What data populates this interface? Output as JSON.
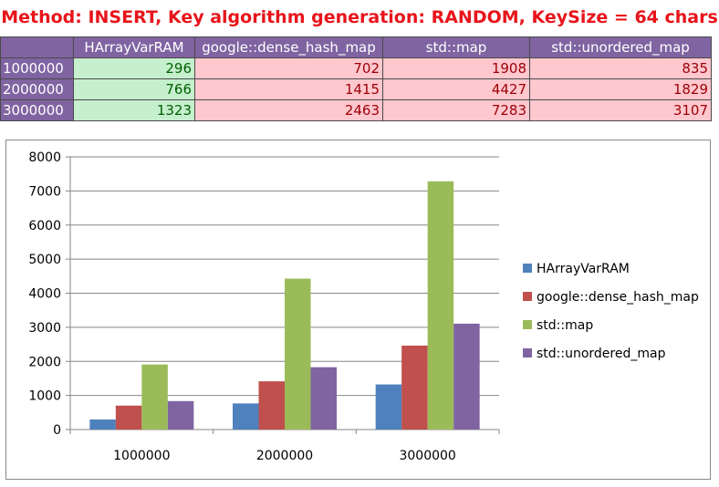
{
  "title": "Method: INSERT, Key algorithm generation: RANDOM, KeySize = 64 chars",
  "table": {
    "columns": [
      "HArrayVarRAM",
      "google::dense_hash_map",
      "std::map",
      "std::unordered_map"
    ],
    "rows": [
      {
        "label": "1000000",
        "values": [
          "296",
          "702",
          "1908",
          "835"
        ]
      },
      {
        "label": "2000000",
        "values": [
          "766",
          "1415",
          "4427",
          "1829"
        ]
      },
      {
        "label": "3000000",
        "values": [
          "1323",
          "2463",
          "7283",
          "3107"
        ]
      }
    ]
  },
  "chart_data": {
    "type": "bar",
    "categories": [
      "1000000",
      "2000000",
      "3000000"
    ],
    "series": [
      {
        "name": "HArrayVarRAM",
        "values": [
          296,
          766,
          1323
        ],
        "color": "#4f81bd"
      },
      {
        "name": "google::dense_hash_map",
        "values": [
          702,
          1415,
          2463
        ],
        "color": "#c0504d"
      },
      {
        "name": "std::map",
        "values": [
          1908,
          4427,
          7283
        ],
        "color": "#9bbb59"
      },
      {
        "name": "std::unordered_map",
        "values": [
          835,
          1829,
          3107
        ],
        "color": "#8064a2"
      }
    ],
    "yticks": [
      "0",
      "1000",
      "2000",
      "3000",
      "4000",
      "5000",
      "6000",
      "7000",
      "8000"
    ],
    "ylim": [
      0,
      8000
    ],
    "grid": true,
    "legend": "right"
  },
  "colors": {
    "header_bg": "#8064a2",
    "good_bg": "#c6efce",
    "good_text": "#006100",
    "bad_bg": "#ffc7ce",
    "bad_text": "#9c0006",
    "title": "#e8141b"
  }
}
